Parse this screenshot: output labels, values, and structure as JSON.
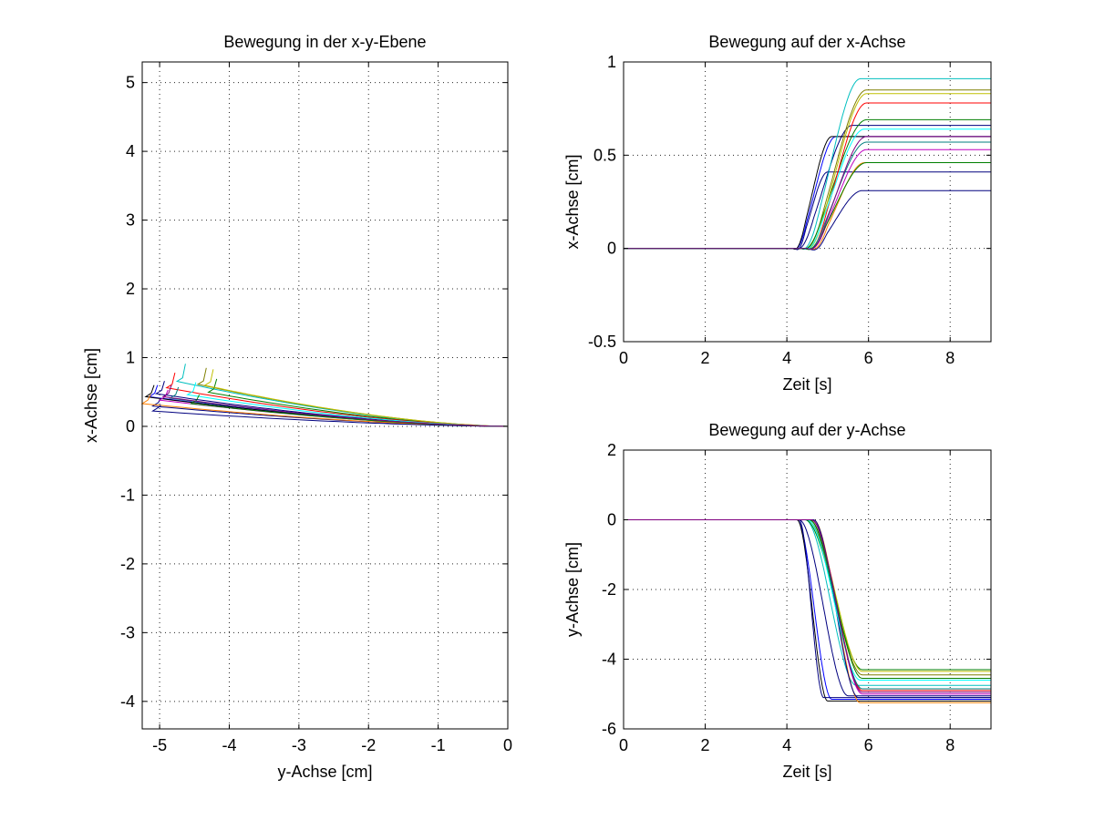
{
  "chart_data": [
    {
      "id": "xy",
      "type": "line",
      "title": "Bewegung in der x-y-Ebene",
      "xlabel": "y-Achse [cm]",
      "ylabel": "x-Achse [cm]",
      "xlim": [
        -5.25,
        0
      ],
      "ylim": [
        -4.4,
        5.3
      ],
      "xticks": [
        -5,
        -4,
        -3,
        -2,
        -1,
        0
      ],
      "yticks": [
        -4,
        -3,
        -2,
        -1,
        0,
        1,
        2,
        3,
        4,
        5
      ],
      "grid": true
    },
    {
      "id": "xt",
      "type": "line",
      "title": "Bewegung auf der x-Achse",
      "xlabel": "Zeit [s]",
      "ylabel": "x-Achse [cm]",
      "xlim": [
        0,
        9
      ],
      "ylim": [
        -0.5,
        1
      ],
      "xticks": [
        0,
        2,
        4,
        6,
        8
      ],
      "yticks": [
        -0.5,
        0,
        0.5,
        1
      ],
      "grid": true
    },
    {
      "id": "yt",
      "type": "line",
      "title": "Bewegung auf der y-Achse",
      "xlabel": "Zeit [s]",
      "ylabel": "y-Achse [cm]",
      "xlim": [
        0,
        9
      ],
      "ylim": [
        -6,
        2
      ],
      "xticks": [
        0,
        2,
        4,
        6,
        8
      ],
      "yticks": [
        -6,
        -4,
        -2,
        0,
        2
      ],
      "grid": true
    }
  ],
  "trials": [
    {
      "color": "#0000ff",
      "start": 4.15,
      "end": 5.2,
      "x_final": 0.6,
      "y_final": -5.15
    },
    {
      "color": "#00007f",
      "start": 4.2,
      "end": 5.6,
      "x_final": 0.66,
      "y_final": -5.05
    },
    {
      "color": "#000000",
      "start": 4.15,
      "end": 5.1,
      "x_final": 0.6,
      "y_final": -5.2
    },
    {
      "color": "#00007f",
      "start": 4.2,
      "end": 5.0,
      "x_final": 0.41,
      "y_final": -5.1
    },
    {
      "color": "#00bfbf",
      "start": 4.35,
      "end": 5.8,
      "x_final": 0.91,
      "y_final": -4.75
    },
    {
      "color": "#7f7f00",
      "start": 4.4,
      "end": 5.95,
      "x_final": 0.85,
      "y_final": -4.45
    },
    {
      "color": "#007f00",
      "start": 4.35,
      "end": 5.95,
      "x_final": 0.69,
      "y_final": -4.3
    },
    {
      "color": "#bfbf00",
      "start": 4.45,
      "end": 5.95,
      "x_final": 0.83,
      "y_final": -4.35
    },
    {
      "color": "#ff0000",
      "start": 4.5,
      "end": 5.95,
      "x_final": 0.78,
      "y_final": -4.9
    },
    {
      "color": "#bf00bf",
      "start": 4.5,
      "end": 5.95,
      "x_final": 0.53,
      "y_final": -5.0
    },
    {
      "color": "#ff8000",
      "start": 4.55,
      "end": 5.9,
      "x_final": 0.46,
      "y_final": -5.25
    },
    {
      "color": "#00007f",
      "start": 4.55,
      "end": 5.85,
      "x_final": 0.31,
      "y_final": -5.1
    },
    {
      "color": "#00ffff",
      "start": 4.4,
      "end": 5.9,
      "x_final": 0.64,
      "y_final": -4.6
    },
    {
      "color": "#007f7f",
      "start": 4.45,
      "end": 5.95,
      "x_final": 0.57,
      "y_final": -4.85
    },
    {
      "color": "#007f00",
      "start": 4.45,
      "end": 5.95,
      "x_final": 0.46,
      "y_final": -4.55
    },
    {
      "color": "#7f007f",
      "start": 4.5,
      "end": 5.95,
      "x_final": 0.6,
      "y_final": -4.95
    }
  ]
}
